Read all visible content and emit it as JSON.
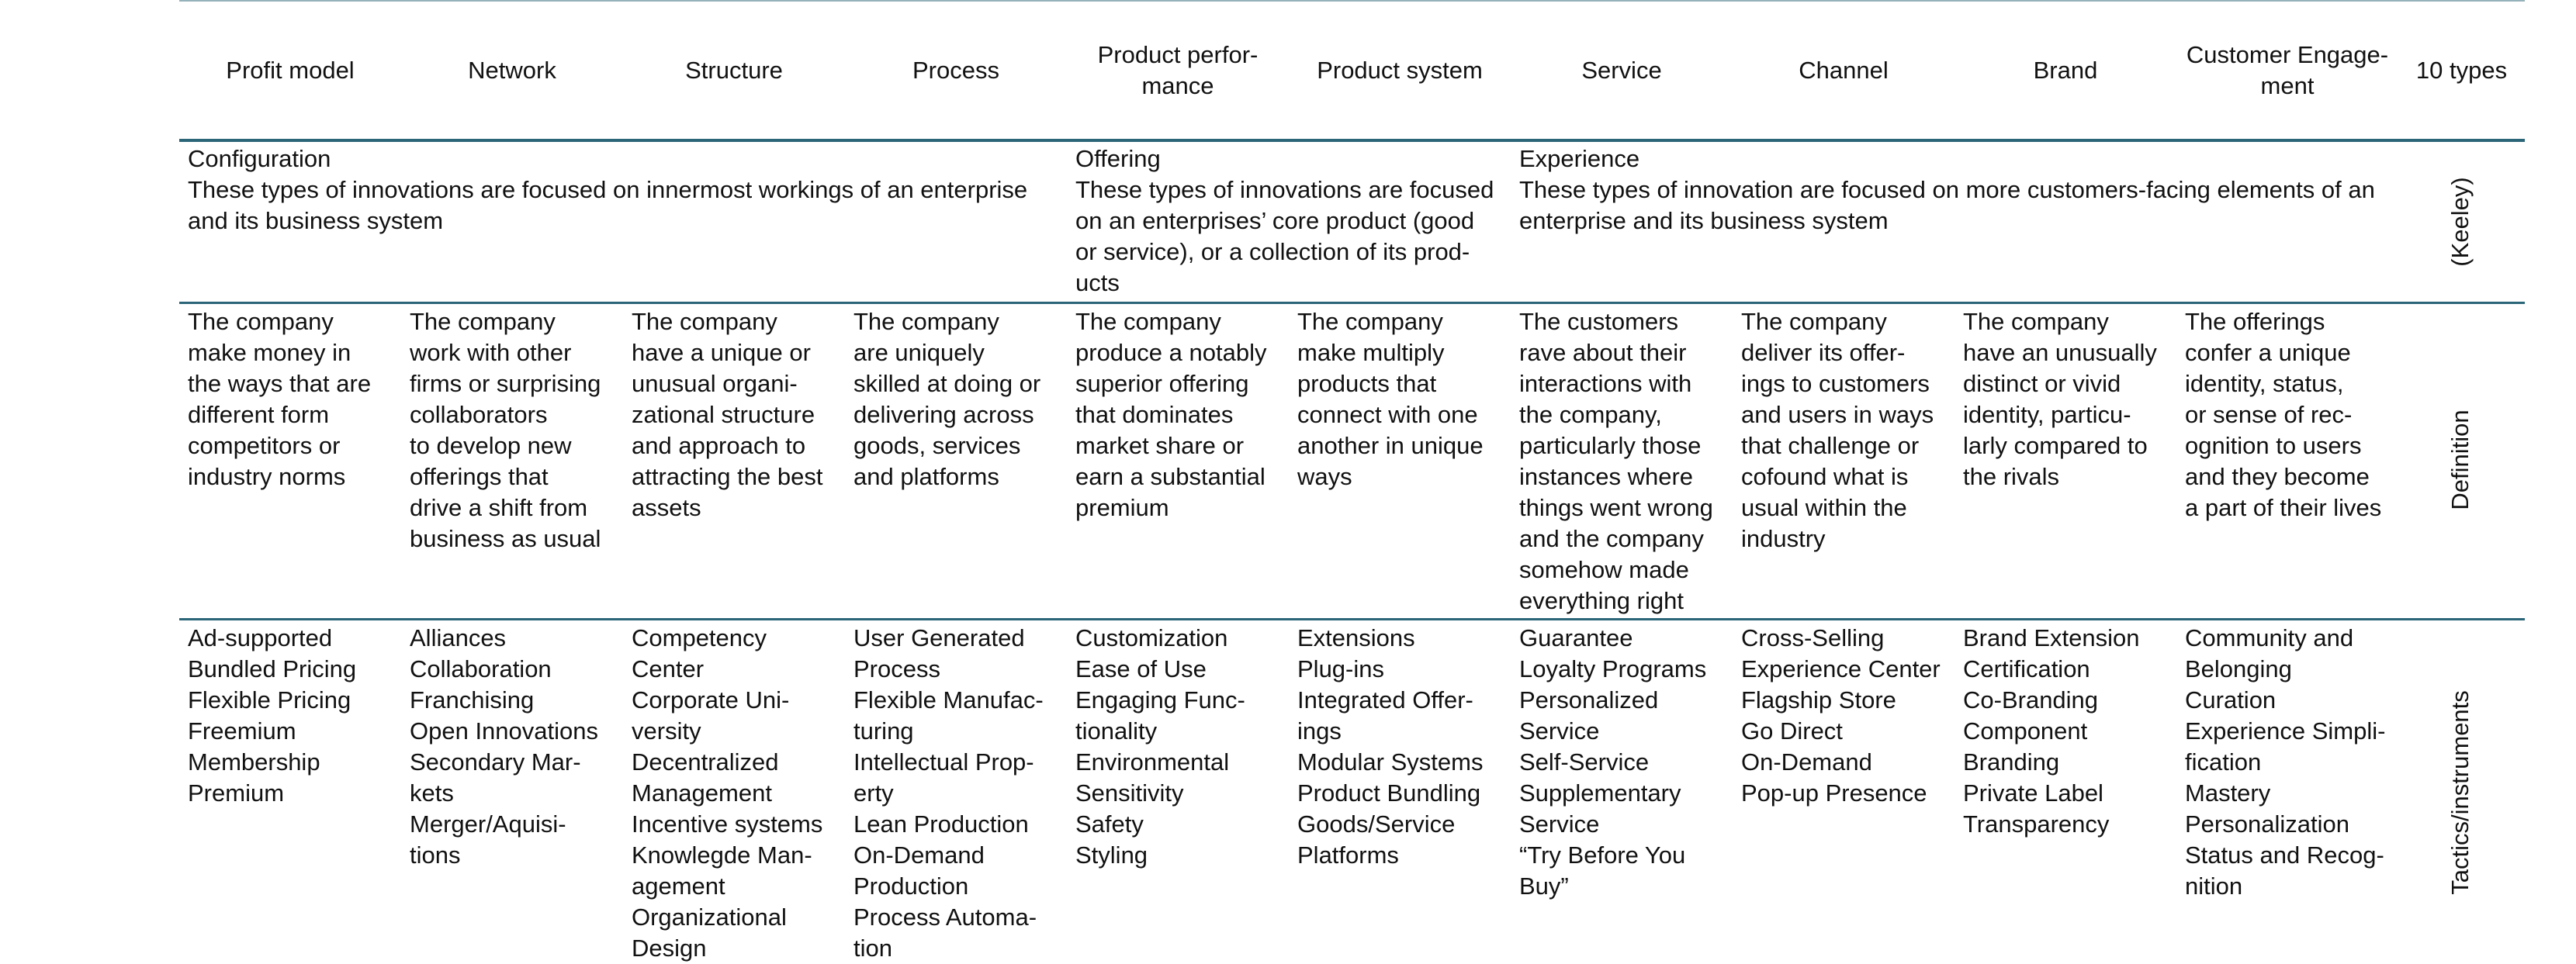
{
  "header": [
    [
      "Profit model"
    ],
    [
      "Network"
    ],
    [
      "Structure"
    ],
    [
      "Process"
    ],
    [
      "Product perfor-",
      "mance"
    ],
    [
      "Product system"
    ],
    [
      "Service"
    ],
    [
      "Channel"
    ],
    [
      "Brand"
    ],
    [
      "Customer Engage-",
      "ment"
    ],
    [
      "10 types"
    ]
  ],
  "groups": [
    {
      "title": "Configuration",
      "lines": [
        "These types of innovations are focused on innermost workings of an enterprise",
        "and its business system"
      ]
    },
    {
      "title": "Offering",
      "lines": [
        "These types of innovations are focused",
        "on an enterprises’ core product (good",
        "or service), or a collection of its prod-",
        "ucts"
      ]
    },
    {
      "title": "Experience",
      "lines": [
        "These types of innovation are focused on more customers-facing elements of an",
        "enterprise and its business system"
      ]
    }
  ],
  "side": [
    "(Keeley)",
    "Definition",
    "Tactics/instruments"
  ],
  "definitions": [
    [
      "The company",
      "make money in",
      "the ways that are",
      "different form",
      "competitors or",
      "industry norms"
    ],
    [
      "The company",
      "work with other",
      "firms or surprising",
      "collaborators",
      "to develop new",
      "offerings that",
      "drive a shift from",
      "business as usual"
    ],
    [
      "The company",
      "have a unique or",
      "unusual organi-",
      "zational structure",
      "and approach to",
      "attracting the best",
      "assets"
    ],
    [
      "The company",
      "are uniquely",
      "skilled at doing or",
      "delivering across",
      "goods, services",
      "and platforms"
    ],
    [
      "The company",
      "produce a notably",
      "superior offering",
      "that dominates",
      "market share or",
      "earn a substantial",
      "premium"
    ],
    [
      "The company",
      "make multiply",
      "products that",
      "connect with one",
      "another in unique",
      "ways"
    ],
    [
      "The customers",
      "rave about their",
      "interactions with",
      "the company,",
      "particularly those",
      "instances where",
      "things went wrong",
      "and the company",
      "somehow made",
      "everything right"
    ],
    [
      "The company",
      "deliver its offer-",
      "ings to customers",
      "and users in ways",
      "that challenge or",
      "cofound what is",
      "usual within the",
      "industry"
    ],
    [
      "The company",
      "have an unusually",
      "distinct or vivid",
      "identity, particu-",
      "larly compared to",
      "the rivals"
    ],
    [
      "The offerings",
      "confer a unique",
      "identity, status,",
      "or sense of rec-",
      "ognition to users",
      "and they become",
      "a part of their lives"
    ]
  ],
  "tactics": [
    [
      "Ad-supported",
      "Bundled Pricing",
      "Flexible Pricing",
      "Freemium",
      "Membership",
      "Premium"
    ],
    [
      "Alliances",
      "Collaboration",
      "Franchising",
      "Open Innovations",
      "Secondary Mar-",
      "kets",
      "Merger/Aquisi-",
      "tions"
    ],
    [
      "Competency",
      "Center",
      "Corporate Uni-",
      "versity",
      "Decentralized",
      "Management",
      "Incentive systems",
      "Knowlegde Man-",
      "agement",
      "Organizational",
      "Design"
    ],
    [
      "User Generated",
      "Process",
      "Flexible Manufac-",
      "turing",
      "Intellectual Prop-",
      "erty",
      "Lean Production",
      "On-Demand",
      "Production",
      "Process Automa-",
      "tion"
    ],
    [
      "Customization",
      "Ease of Use",
      "Engaging Func-",
      "tionality",
      "Environmental",
      "Sensitivity",
      "Safety",
      "Styling"
    ],
    [
      "Extensions",
      "Plug-ins",
      "Integrated Offer-",
      "ings",
      "Modular Systems",
      "Product Bundling",
      "Goods/Service",
      "Platforms"
    ],
    [
      "Guarantee",
      "Loyalty Programs",
      "Personalized",
      "Service",
      "Self-Service",
      "Supplementary",
      "Service",
      "“Try Before You",
      "Buy”"
    ],
    [
      "Cross-Selling",
      "Experience Center",
      "Flagship Store",
      "Go Direct",
      "On-Demand",
      "Pop-up Presence"
    ],
    [
      "Brand Extension",
      "Certification",
      "Co-Branding",
      "Component",
      "Branding",
      "Private Label",
      "Transparency"
    ],
    [
      "Community and",
      "Belonging",
      "Curation",
      "Experience Simpli-",
      "fication",
      "Mastery",
      "Personalization",
      "Status and Recog-",
      "nition"
    ]
  ]
}
